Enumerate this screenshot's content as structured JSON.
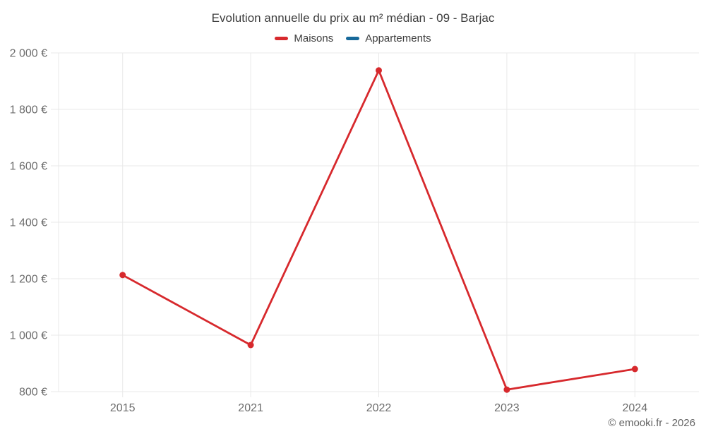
{
  "header": {
    "title": "Evolution annuelle du prix au m² médian - 09 - Barjac"
  },
  "footer": {
    "credit": "© emooki.fr - 2026"
  },
  "chart_data": {
    "type": "line",
    "title": "Evolution annuelle du prix au m² médian - 09 - Barjac",
    "categories": [
      "2015",
      "2021",
      "2022",
      "2023",
      "2024"
    ],
    "series": [
      {
        "name": "Maisons",
        "color": "#d7292d",
        "values": [
          1213,
          965,
          1938,
          807,
          880
        ]
      },
      {
        "name": "Appartements",
        "color": "#17699a",
        "values": []
      }
    ],
    "ylim": [
      800,
      2000
    ],
    "y_ticks": [
      {
        "value": 800,
        "label": "800 €"
      },
      {
        "value": 1000,
        "label": "1 000 €"
      },
      {
        "value": 1200,
        "label": "1 200 €"
      },
      {
        "value": 1400,
        "label": "1 400 €"
      },
      {
        "value": 1600,
        "label": "1 600 €"
      },
      {
        "value": 1800,
        "label": "1 800 €"
      },
      {
        "value": 2000,
        "label": "2 000 €"
      }
    ],
    "xlabel": "",
    "ylabel": "",
    "grid": true,
    "legend_position": "top",
    "grid_color": "#e9e9e9",
    "point_radius": 4.5,
    "line_width": 2.8
  }
}
